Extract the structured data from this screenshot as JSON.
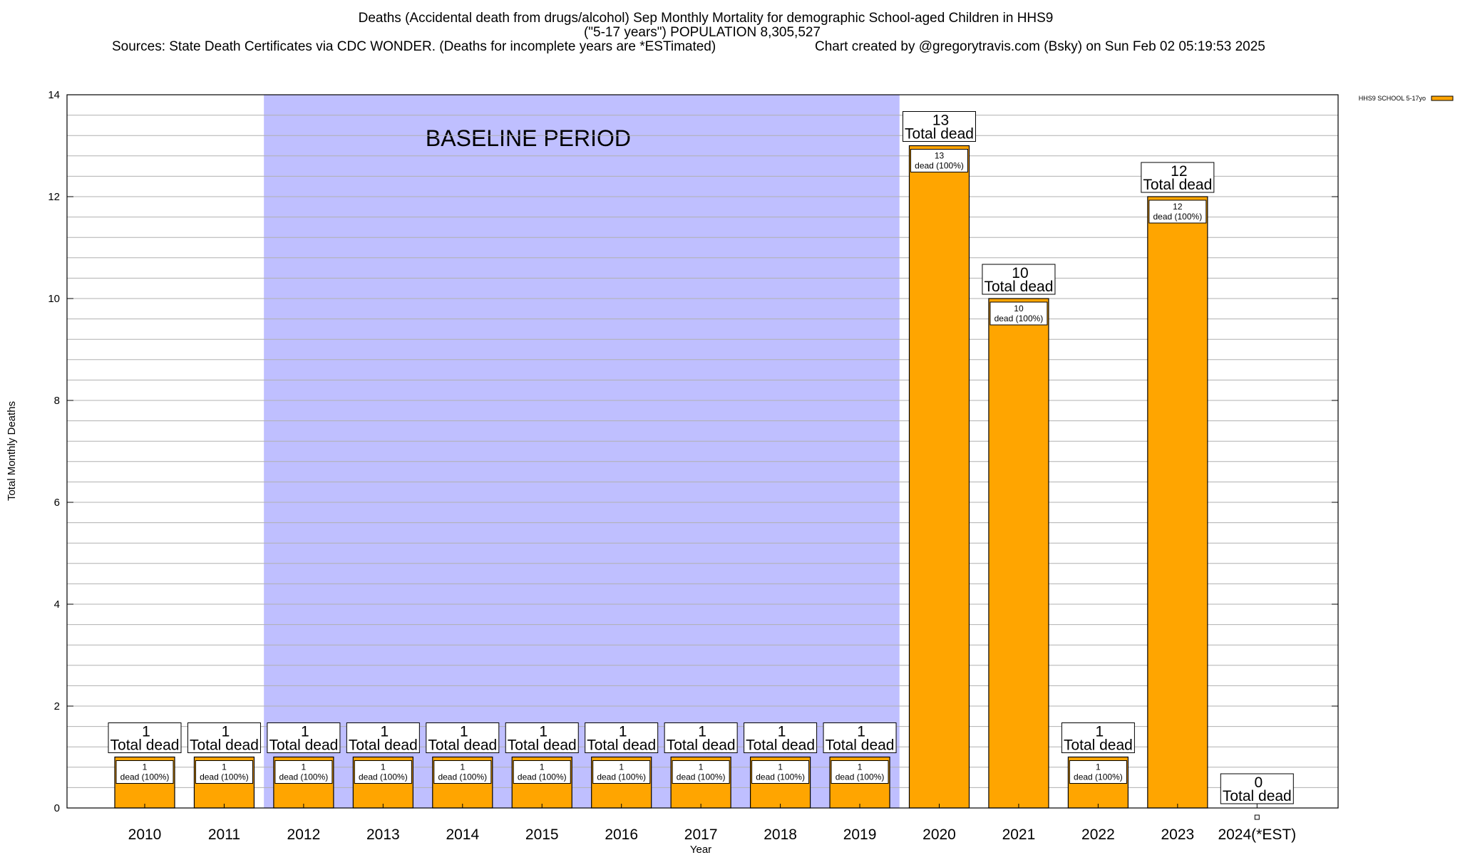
{
  "title_lines": [
    "Deaths (Accidental death from drugs/alcohol) Sep Monthly Mortality for demographic School-aged Children in HHS9",
    "(\"5-17 years\") POPULATION 8,305,527"
  ],
  "sources_text": "Sources: State Death Certificates via CDC WONDER. (Deaths for incomplete years are *ESTimated)",
  "credit_text": "Chart created by @gregorytravis.com (Bsky) on Sun Feb 02 05:19:53 2025",
  "chart_data": {
    "type": "bar",
    "categories": [
      "2010",
      "2011",
      "2012",
      "2013",
      "2014",
      "2015",
      "2016",
      "2017",
      "2018",
      "2019",
      "2020",
      "2021",
      "2022",
      "2023",
      "2024(*EST)"
    ],
    "series": [
      {
        "name": "HHS9 SCHOOL 5-17yo",
        "values": [
          1,
          1,
          1,
          1,
          1,
          1,
          1,
          1,
          1,
          1,
          13,
          10,
          1,
          12,
          0
        ]
      }
    ],
    "total_labels": [
      "1\nTotal dead",
      "1\nTotal dead",
      "1\nTotal dead",
      "1\nTotal dead",
      "1\nTotal dead",
      "1\nTotal dead",
      "1\nTotal dead",
      "1\nTotal dead",
      "1\nTotal dead",
      "1\nTotal dead",
      "13\nTotal dead",
      "10\nTotal dead",
      "1\nTotal dead",
      "12\nTotal dead",
      "0\nTotal dead"
    ],
    "inner_labels": [
      "1\ndead (100%)",
      "1\ndead (100%)",
      "1\ndead (100%)",
      "1\ndead (100%)",
      "1\ndead (100%)",
      "1\ndead (100%)",
      "1\ndead (100%)",
      "1\ndead (100%)",
      "1\ndead (100%)",
      "1\ndead (100%)",
      "13\ndead (100%)",
      "10\ndead (100%)",
      "1\ndead (100%)",
      "12\ndead (100%)",
      ""
    ],
    "xlabel": "Year",
    "ylabel": "Total Monthly Deaths",
    "ylim": [
      0,
      14
    ],
    "yticks": [
      0,
      2,
      4,
      6,
      8,
      10,
      12,
      14
    ],
    "minor_grid_step": 0.4,
    "grid": true,
    "baseline_period": {
      "label": "BASELINE PERIOD",
      "from": "2012",
      "to": "2019"
    },
    "legend_position": "top-right",
    "colors": {
      "bar": "#FFA500",
      "baseline": "#BFBFFF",
      "grid": "#B0B0B0"
    }
  }
}
